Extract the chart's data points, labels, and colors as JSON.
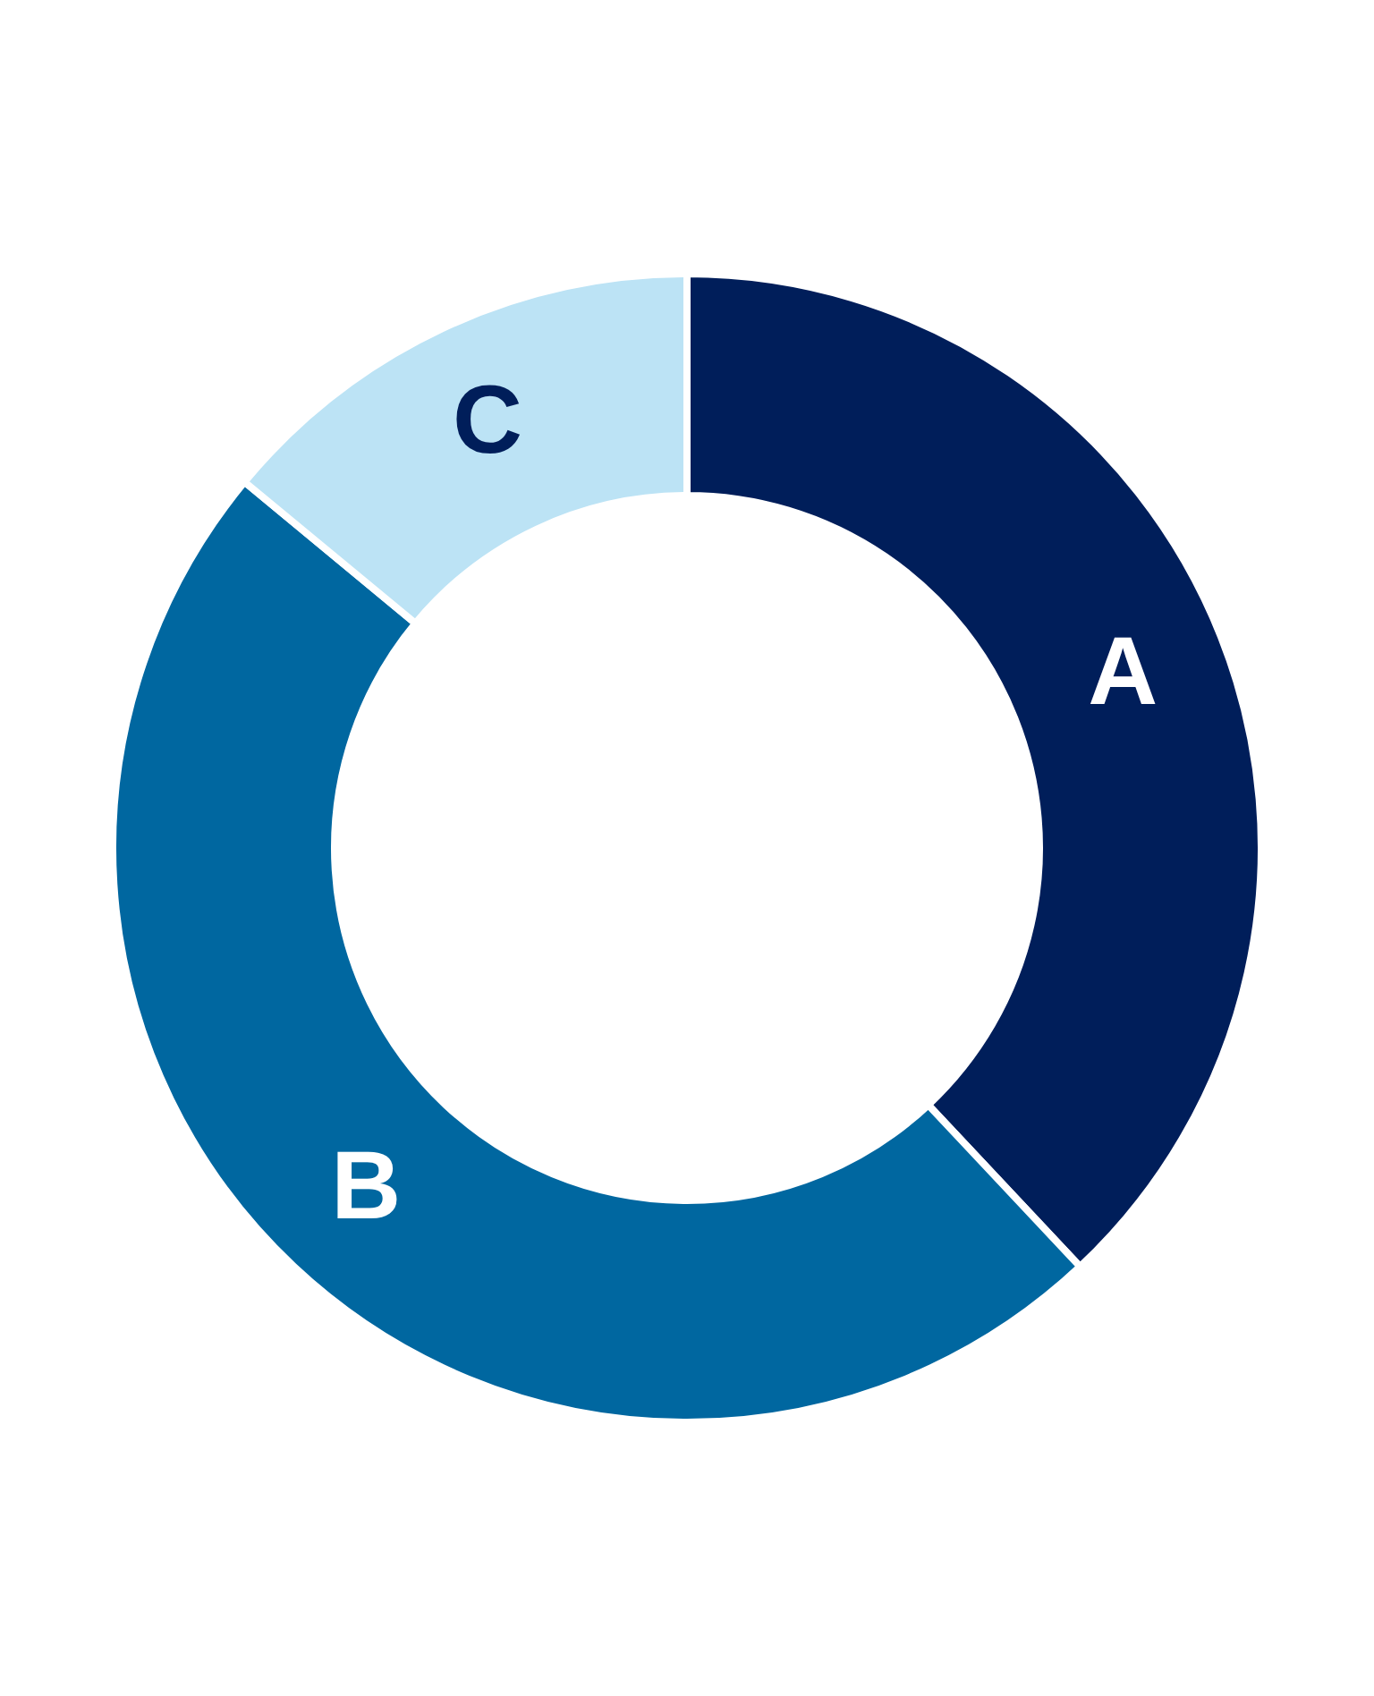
{
  "chart_data": {
    "type": "donut",
    "categories": [
      "A",
      "B",
      "C"
    ],
    "values": [
      38,
      48,
      14
    ],
    "colors": [
      "#001e5a",
      "#0067a0",
      "#bce3f5"
    ]
  }
}
